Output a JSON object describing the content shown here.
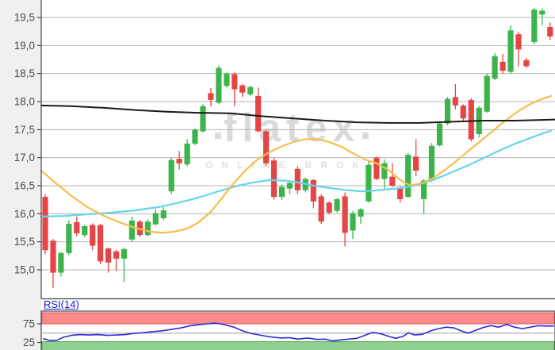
{
  "watermark": {
    "brand": "flatex",
    "subtitle": "ONLINE BROKER"
  },
  "indicator": {
    "label": "RSI(14)"
  },
  "colors": {
    "up": "#3CB44B",
    "down": "#E64545",
    "grid": "#B5B5B5",
    "axis": "#444444",
    "tick_text": "#4A4A4A",
    "gutter": "#F0F0F0",
    "watermark": "#DADADA",
    "rsi_line": "#2B2BD9",
    "rsi_mid": "#9A9A9A",
    "band_red_fill": "#F98B8B",
    "band_red_edge": "#E25757",
    "band_green_fill": "#8FCF8F",
    "band_green_edge": "#4CA64C"
  },
  "chart_data": [
    {
      "type": "candlestick",
      "title": "",
      "ylim": [
        14.5,
        19.8
      ],
      "grid": true,
      "y_axis": {
        "decimal_separator": ",",
        "ticks": [
          {
            "value": 19.5,
            "label": "19,5"
          },
          {
            "value": 19.0,
            "label": "19,0"
          },
          {
            "value": 18.5,
            "label": "18,5"
          },
          {
            "value": 18.0,
            "label": "18,0"
          },
          {
            "value": 17.5,
            "label": "17,5"
          },
          {
            "value": 17.0,
            "label": "17,0"
          },
          {
            "value": 16.5,
            "label": "16,5"
          },
          {
            "value": 16.0,
            "label": "16,0"
          },
          {
            "value": 15.5,
            "label": "15,5"
          },
          {
            "value": 15.0,
            "label": "15,0"
          }
        ]
      },
      "candles_format": [
        "open",
        "high",
        "low",
        "close"
      ],
      "candles": [
        [
          16.3,
          16.35,
          15.28,
          15.35
        ],
        [
          15.52,
          15.55,
          14.68,
          14.95
        ],
        [
          14.95,
          15.32,
          14.88,
          15.3
        ],
        [
          15.3,
          15.88,
          15.26,
          15.82
        ],
        [
          15.85,
          15.95,
          15.6,
          15.65
        ],
        [
          15.62,
          15.8,
          15.58,
          15.78
        ],
        [
          15.8,
          15.83,
          15.35,
          15.43
        ],
        [
          15.8,
          15.82,
          15.1,
          15.15
        ],
        [
          15.38,
          15.4,
          14.95,
          15.13
        ],
        [
          15.33,
          15.36,
          14.98,
          15.2
        ],
        [
          15.2,
          15.4,
          14.78,
          15.37
        ],
        [
          15.54,
          15.95,
          15.5,
          15.88
        ],
        [
          15.86,
          15.89,
          15.58,
          15.62
        ],
        [
          15.62,
          15.9,
          15.6,
          15.86
        ],
        [
          15.81,
          16.08,
          15.79,
          16.01
        ],
        [
          15.92,
          16.12,
          15.89,
          16.06
        ],
        [
          16.4,
          17.0,
          16.35,
          16.96
        ],
        [
          16.98,
          17.12,
          16.79,
          16.9
        ],
        [
          16.88,
          17.33,
          16.85,
          17.25
        ],
        [
          17.25,
          17.52,
          17.22,
          17.5
        ],
        [
          17.47,
          17.95,
          17.45,
          17.92
        ],
        [
          18.15,
          18.24,
          17.92,
          18.03
        ],
        [
          17.98,
          18.64,
          17.96,
          18.6
        ],
        [
          18.28,
          18.52,
          18.25,
          18.5
        ],
        [
          18.49,
          18.52,
          17.92,
          18.22
        ],
        [
          18.29,
          18.32,
          18.08,
          18.16
        ],
        [
          18.13,
          18.28,
          18.1,
          18.26
        ],
        [
          18.1,
          18.25,
          17.45,
          17.47
        ],
        [
          17.47,
          17.5,
          16.85,
          16.9
        ],
        [
          16.95,
          17.0,
          16.25,
          16.3
        ],
        [
          16.3,
          16.52,
          16.25,
          16.48
        ],
        [
          16.45,
          16.6,
          16.35,
          16.55
        ],
        [
          16.8,
          16.85,
          16.35,
          16.42
        ],
        [
          16.42,
          16.65,
          16.38,
          16.62
        ],
        [
          16.6,
          16.62,
          16.1,
          16.22
        ],
        [
          16.31,
          16.35,
          15.82,
          15.86
        ],
        [
          16.2,
          16.22,
          15.99,
          16.02
        ],
        [
          16.05,
          16.28,
          16.02,
          16.26
        ],
        [
          16.31,
          16.38,
          15.42,
          15.66
        ],
        [
          15.7,
          16.05,
          15.55,
          16.01
        ],
        [
          15.95,
          16.1,
          15.82,
          16.08
        ],
        [
          16.22,
          16.94,
          16.2,
          16.87
        ],
        [
          17.0,
          17.02,
          16.6,
          16.62
        ],
        [
          16.62,
          16.97,
          16.45,
          16.9
        ],
        [
          16.66,
          16.9,
          16.48,
          16.5
        ],
        [
          16.47,
          16.5,
          16.2,
          16.26
        ],
        [
          16.3,
          17.08,
          16.28,
          17.05
        ],
        [
          17.02,
          17.33,
          16.67,
          16.77
        ],
        [
          16.26,
          16.62,
          16.0,
          16.59
        ],
        [
          16.59,
          17.26,
          16.57,
          17.21
        ],
        [
          17.22,
          17.65,
          17.2,
          17.61
        ],
        [
          17.61,
          18.08,
          17.58,
          18.05
        ],
        [
          18.08,
          18.31,
          17.86,
          17.93
        ],
        [
          17.93,
          17.95,
          17.65,
          17.7
        ],
        [
          18.03,
          18.06,
          17.29,
          17.33
        ],
        [
          17.42,
          17.92,
          17.36,
          17.89
        ],
        [
          17.82,
          18.5,
          17.8,
          18.46
        ],
        [
          18.41,
          18.86,
          18.38,
          18.81
        ],
        [
          18.71,
          18.85,
          18.5,
          18.55
        ],
        [
          18.53,
          19.36,
          18.5,
          19.27
        ],
        [
          19.2,
          19.24,
          18.63,
          18.93
        ],
        [
          18.74,
          18.78,
          18.6,
          18.63
        ],
        [
          19.06,
          19.67,
          19.02,
          19.64
        ],
        [
          19.55,
          19.66,
          19.36,
          19.62
        ],
        [
          19.33,
          19.41,
          19.1,
          19.16
        ]
      ],
      "overlays": [
        {
          "name": "sma-long-line",
          "color": "#1A1A1A",
          "width": 2,
          "points": [
            [
              52,
              17.93
            ],
            [
              90,
              17.92
            ],
            [
              130,
              17.89
            ],
            [
              170,
              17.85
            ],
            [
              210,
              17.82
            ],
            [
              250,
              17.8
            ],
            [
              290,
              17.79
            ],
            [
              330,
              17.74
            ],
            [
              370,
              17.7
            ],
            [
              410,
              17.66
            ],
            [
              450,
              17.63
            ],
            [
              490,
              17.62
            ],
            [
              530,
              17.62
            ],
            [
              570,
              17.64
            ],
            [
              610,
              17.66
            ],
            [
              650,
              17.66
            ],
            [
              700,
              17.68
            ]
          ]
        },
        {
          "name": "sma-medium-line",
          "color": "#F5BE4E",
          "width": 2.2,
          "points": [
            [
              52,
              16.77
            ],
            [
              70,
              16.55
            ],
            [
              90,
              16.32
            ],
            [
              110,
              16.12
            ],
            [
              130,
              15.97
            ],
            [
              150,
              15.85
            ],
            [
              170,
              15.75
            ],
            [
              190,
              15.68
            ],
            [
              205,
              15.66
            ],
            [
              220,
              15.68
            ],
            [
              235,
              15.73
            ],
            [
              250,
              15.84
            ],
            [
              265,
              16.02
            ],
            [
              280,
              16.28
            ],
            [
              295,
              16.55
            ],
            [
              310,
              16.78
            ],
            [
              325,
              16.97
            ],
            [
              340,
              17.1
            ],
            [
              355,
              17.2
            ],
            [
              370,
              17.28
            ],
            [
              385,
              17.33
            ],
            [
              400,
              17.33
            ],
            [
              415,
              17.28
            ],
            [
              430,
              17.2
            ],
            [
              445,
              17.08
            ],
            [
              460,
              16.97
            ],
            [
              475,
              16.9
            ],
            [
              490,
              16.78
            ],
            [
              505,
              16.6
            ],
            [
              515,
              16.52
            ],
            [
              525,
              16.52
            ],
            [
              535,
              16.56
            ],
            [
              548,
              16.65
            ],
            [
              560,
              16.77
            ],
            [
              572,
              16.9
            ],
            [
              584,
              17.04
            ],
            [
              596,
              17.18
            ],
            [
              608,
              17.32
            ],
            [
              620,
              17.46
            ],
            [
              632,
              17.6
            ],
            [
              644,
              17.73
            ],
            [
              656,
              17.85
            ],
            [
              668,
              17.95
            ],
            [
              680,
              18.03
            ],
            [
              695,
              18.1
            ]
          ]
        },
        {
          "name": "sma-short-line",
          "color": "#66D4EA",
          "width": 2.2,
          "points": [
            [
              52,
              15.95
            ],
            [
              80,
              15.96
            ],
            [
              110,
              15.99
            ],
            [
              140,
              16.02
            ],
            [
              170,
              16.06
            ],
            [
              200,
              16.12
            ],
            [
              220,
              16.18
            ],
            [
              240,
              16.25
            ],
            [
              260,
              16.33
            ],
            [
              280,
              16.42
            ],
            [
              300,
              16.5
            ],
            [
              320,
              16.56
            ],
            [
              340,
              16.6
            ],
            [
              360,
              16.59
            ],
            [
              380,
              16.55
            ],
            [
              400,
              16.49
            ],
            [
              420,
              16.45
            ],
            [
              440,
              16.42
            ],
            [
              455,
              16.4
            ],
            [
              470,
              16.41
            ],
            [
              485,
              16.43
            ],
            [
              500,
              16.45
            ],
            [
              515,
              16.48
            ],
            [
              530,
              16.53
            ],
            [
              545,
              16.6
            ],
            [
              560,
              16.68
            ],
            [
              575,
              16.77
            ],
            [
              590,
              16.86
            ],
            [
              605,
              16.96
            ],
            [
              620,
              17.06
            ],
            [
              635,
              17.16
            ],
            [
              650,
              17.25
            ],
            [
              665,
              17.33
            ],
            [
              680,
              17.41
            ],
            [
              695,
              17.48
            ]
          ]
        }
      ]
    },
    {
      "type": "line",
      "name": "RSI(14)",
      "overbought": 75,
      "oversold": 25,
      "midline": 50,
      "ticks": [
        {
          "value": 75,
          "label": "75"
        },
        {
          "value": 25,
          "label": "25"
        }
      ],
      "series": [
        [
          55,
          35
        ],
        [
          63,
          30
        ],
        [
          72,
          31
        ],
        [
          80,
          39
        ],
        [
          90,
          44
        ],
        [
          100,
          46
        ],
        [
          112,
          45
        ],
        [
          124,
          46
        ],
        [
          136,
          44
        ],
        [
          148,
          45
        ],
        [
          158,
          46
        ],
        [
          168,
          49
        ],
        [
          180,
          51
        ],
        [
          192,
          54
        ],
        [
          204,
          56
        ],
        [
          216,
          60
        ],
        [
          228,
          64
        ],
        [
          240,
          70
        ],
        [
          252,
          73
        ],
        [
          262,
          75
        ],
        [
          270,
          77
        ],
        [
          278,
          75
        ],
        [
          286,
          71
        ],
        [
          295,
          66
        ],
        [
          305,
          57
        ],
        [
          315,
          50
        ],
        [
          325,
          46
        ],
        [
          335,
          42
        ],
        [
          345,
          39
        ],
        [
          355,
          37
        ],
        [
          365,
          38
        ],
        [
          376,
          34
        ],
        [
          388,
          37
        ],
        [
          400,
          33
        ],
        [
          410,
          34
        ],
        [
          420,
          29
        ],
        [
          430,
          32
        ],
        [
          440,
          34
        ],
        [
          450,
          36
        ],
        [
          460,
          44
        ],
        [
          470,
          52
        ],
        [
          481,
          48
        ],
        [
          491,
          41
        ],
        [
          499,
          36
        ],
        [
          509,
          42
        ],
        [
          515,
          51
        ],
        [
          523,
          45
        ],
        [
          533,
          47
        ],
        [
          543,
          56
        ],
        [
          553,
          62
        ],
        [
          563,
          66
        ],
        [
          573,
          64
        ],
        [
          583,
          55
        ],
        [
          591,
          50
        ],
        [
          599,
          57
        ],
        [
          609,
          65
        ],
        [
          619,
          70
        ],
        [
          629,
          66
        ],
        [
          639,
          73
        ],
        [
          649,
          66
        ],
        [
          659,
          62
        ],
        [
          669,
          66
        ],
        [
          679,
          70
        ],
        [
          689,
          69
        ],
        [
          698,
          69
        ]
      ]
    }
  ]
}
